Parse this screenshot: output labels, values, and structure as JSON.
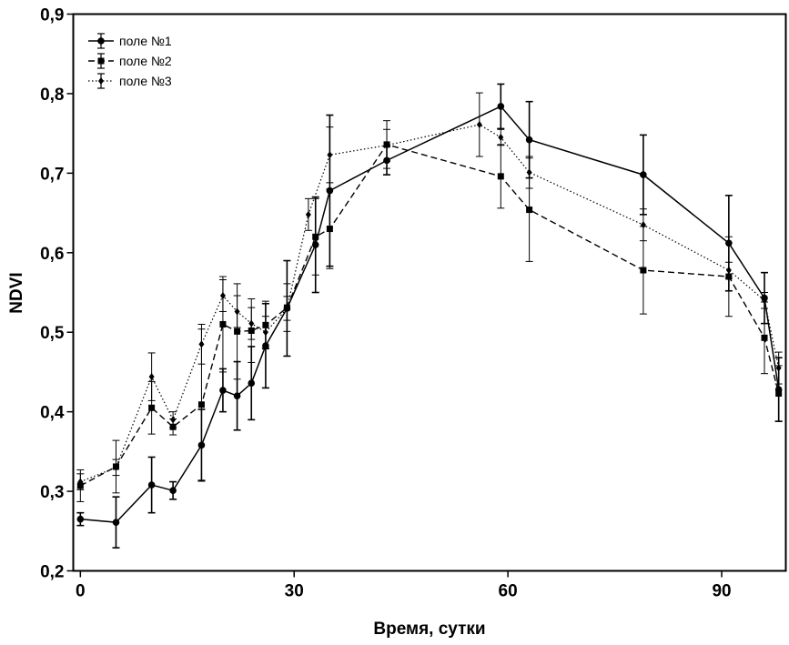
{
  "chart_data": {
    "type": "line",
    "xlabel": "Время, сутки",
    "ylabel": "NDVI",
    "xlim": [
      -1,
      99
    ],
    "ylim": [
      0.2,
      0.9
    ],
    "xticks": [
      0,
      30,
      60,
      90
    ],
    "xtick_labels": [
      "0",
      "30",
      "60",
      "90"
    ],
    "yticks": [
      0.2,
      0.3,
      0.4,
      0.5,
      0.6,
      0.7,
      0.8,
      0.9
    ],
    "ytick_labels": [
      "0,2",
      "0,3",
      "0,4",
      "0,5",
      "0,6",
      "0,7",
      "0,8",
      "0,9"
    ],
    "grid": false,
    "legend_position": "top-left",
    "series": [
      {
        "name": "поле №1",
        "line_style": "solid",
        "marker": "circle",
        "x": [
          0,
          5,
          10,
          13,
          17,
          20,
          22,
          24,
          26,
          29,
          33,
          35,
          43,
          59,
          63,
          79,
          91,
          96,
          98
        ],
        "y": [
          0.265,
          0.261,
          0.308,
          0.301,
          0.358,
          0.427,
          0.42,
          0.436,
          0.483,
          0.53,
          0.61,
          0.678,
          0.716,
          0.784,
          0.742,
          0.698,
          0.612,
          0.543,
          0.428
        ],
        "err": [
          0.008,
          0.032,
          0.035,
          0.011,
          0.045,
          0.027,
          0.043,
          0.046,
          0.053,
          0.06,
          0.06,
          0.095,
          0.018,
          0.028,
          0.048,
          0.05,
          0.06,
          0.032,
          0.04
        ]
      },
      {
        "name": "поле №2",
        "line_style": "dashed",
        "marker": "square",
        "x": [
          0,
          5,
          10,
          13,
          17,
          20,
          22,
          24,
          26,
          29,
          33,
          35,
          43,
          59,
          63,
          79,
          91,
          96,
          98
        ],
        "y": [
          0.307,
          0.331,
          0.405,
          0.381,
          0.409,
          0.51,
          0.501,
          0.502,
          0.509,
          0.531,
          0.62,
          0.63,
          0.736,
          0.696,
          0.654,
          0.578,
          0.57,
          0.493,
          0.423
        ],
        "err": [
          0.02,
          0.033,
          0.033,
          0.01,
          0.095,
          0.06,
          0.06,
          0.04,
          0.03,
          0.03,
          0.048,
          0.05,
          0.03,
          0.04,
          0.065,
          0.055,
          0.05,
          0.045,
          0.035
        ]
      },
      {
        "name": "поле №3",
        "line_style": "dotted",
        "marker": "diamond",
        "x": [
          0,
          5,
          10,
          13,
          17,
          20,
          22,
          24,
          26,
          29,
          32,
          35,
          43,
          56,
          59,
          63,
          79,
          91,
          96,
          98
        ],
        "y": [
          0.312,
          0.33,
          0.444,
          0.39,
          0.485,
          0.546,
          0.526,
          0.511,
          0.5,
          0.53,
          0.648,
          0.723,
          0.735,
          0.761,
          0.745,
          0.701,
          0.635,
          0.578,
          0.54,
          0.455
        ],
        "err": [
          0.01,
          0.01,
          0.03,
          0.01,
          0.025,
          0.02,
          0.02,
          0.02,
          0.02,
          0.015,
          0.02,
          0.035,
          0.02,
          0.04,
          0.01,
          0.02,
          0.02,
          0.01,
          0.01,
          0.02
        ]
      }
    ]
  }
}
